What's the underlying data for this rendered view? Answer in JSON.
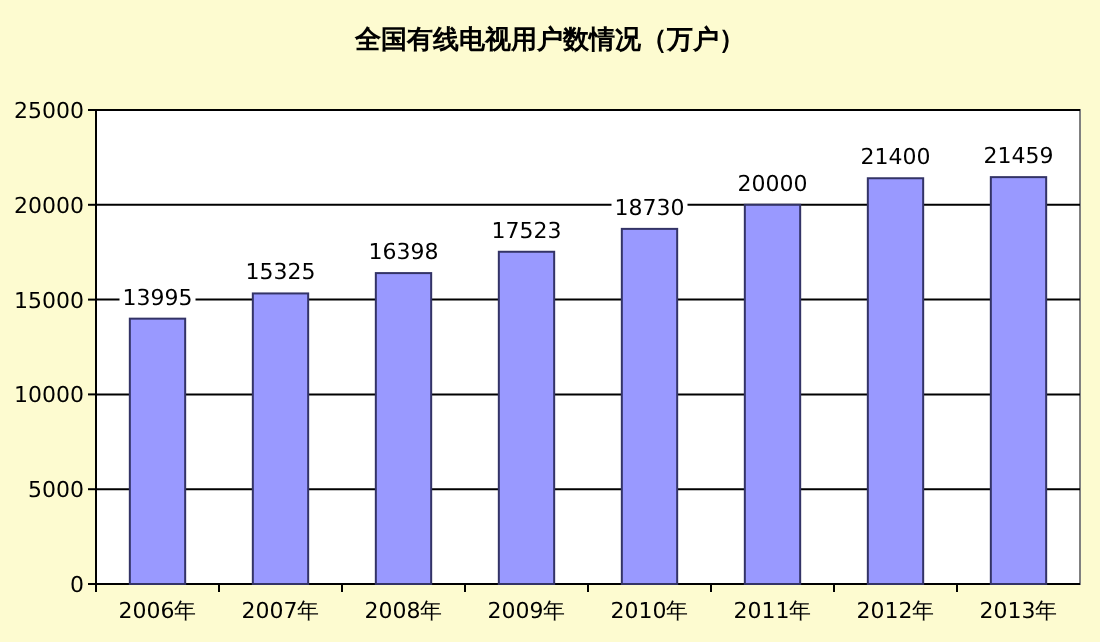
{
  "chart_data": {
    "type": "bar",
    "title": "全国有线电视用户数情况（万户）",
    "categories": [
      "2006年",
      "2007年",
      "2008年",
      "2009年",
      "2010年",
      "2011年",
      "2012年",
      "2013年"
    ],
    "values": [
      13995,
      15325,
      16398,
      17523,
      18730,
      20000,
      21400,
      21459
    ],
    "color": "#9999ff",
    "ylim": [
      0,
      25000
    ],
    "yticks": [
      0,
      5000,
      10000,
      15000,
      20000,
      25000
    ],
    "grid": "y",
    "data_labels": true
  }
}
